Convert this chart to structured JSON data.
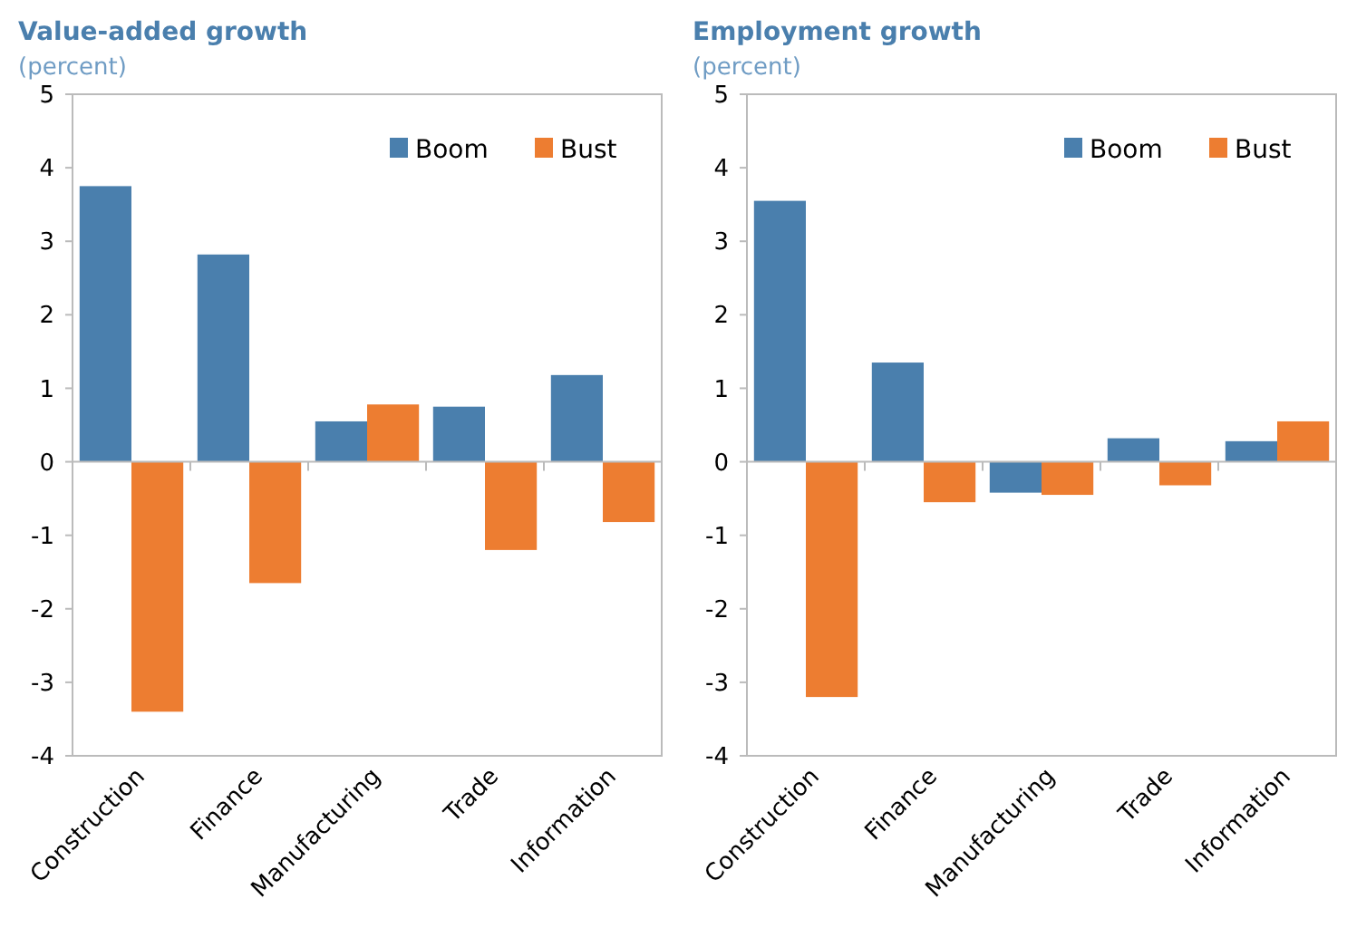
{
  "chart_data": [
    {
      "type": "bar",
      "title": "Value-added growth",
      "subtitle": "(percent)",
      "categories": [
        "Construction",
        "Finance",
        "Manufacturing",
        "Trade",
        "Information"
      ],
      "series": [
        {
          "name": "Bust",
          "color": "#ed7d31",
          "values": [
            -3.4,
            -1.65,
            0.78,
            -1.2,
            -0.82
          ]
        },
        {
          "name": "Boom",
          "color": "#4a7fad",
          "values": [
            3.75,
            2.82,
            0.55,
            0.75,
            1.18
          ]
        }
      ],
      "ylim": [
        -4,
        5
      ],
      "yticks": [
        -4,
        -3,
        -2,
        -1,
        0,
        1,
        2,
        3,
        4,
        5
      ],
      "legend": "top right"
    },
    {
      "type": "bar",
      "title": "Employment growth",
      "subtitle": "(percent)",
      "categories": [
        "Construction",
        "Finance",
        "Manufacturing",
        "Trade",
        "Information"
      ],
      "series": [
        {
          "name": "Bust",
          "color": "#ed7d31",
          "values": [
            -3.2,
            -0.55,
            -0.45,
            -0.32,
            0.55
          ]
        },
        {
          "name": "Boom",
          "color": "#4a7fad",
          "values": [
            3.55,
            1.35,
            -0.42,
            0.32,
            0.28
          ]
        }
      ],
      "ylim": [
        -4,
        5
      ],
      "yticks": [
        -4,
        -3,
        -2,
        -1,
        0,
        1,
        2,
        3,
        4,
        5
      ],
      "legend": "top right"
    }
  ]
}
